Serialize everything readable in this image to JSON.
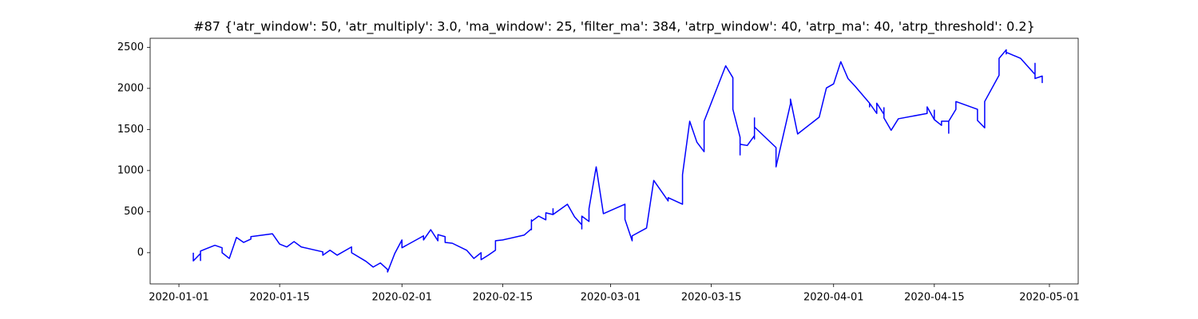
{
  "chart_data": {
    "type": "line",
    "title": "#87 {'atr_window': 50, 'atr_multiply': 3.0, 'ma_window': 25, 'filter_ma': 384, 'atrp_window': 40, 'atrp_ma': 40, 'atrp_threshold': 0.2}",
    "x": [
      "2020-01-03",
      "2020-01-03",
      "2020-01-04",
      "2020-01-04",
      "2020-01-04",
      "2020-01-06",
      "2020-01-07",
      "2020-01-07",
      "2020-01-08",
      "2020-01-09",
      "2020-01-10",
      "2020-01-11",
      "2020-01-11",
      "2020-01-14",
      "2020-01-15",
      "2020-01-16",
      "2020-01-17",
      "2020-01-18",
      "2020-01-21",
      "2020-01-21",
      "2020-01-22",
      "2020-01-23",
      "2020-01-25",
      "2020-01-25",
      "2020-01-27",
      "2020-01-28",
      "2020-01-29",
      "2020-01-30",
      "2020-01-30",
      "2020-01-31",
      "2020-02-01",
      "2020-02-01",
      "2020-02-04",
      "2020-02-04",
      "2020-02-05",
      "2020-02-06",
      "2020-02-06",
      "2020-02-07",
      "2020-02-07",
      "2020-02-08",
      "2020-02-10",
      "2020-02-11",
      "2020-02-12",
      "2020-02-12",
      "2020-02-13",
      "2020-02-14",
      "2020-02-14",
      "2020-02-15",
      "2020-02-18",
      "2020-02-19",
      "2020-02-19",
      "2020-02-19",
      "2020-02-19",
      "2020-02-20",
      "2020-02-21",
      "2020-02-21",
      "2020-02-21",
      "2020-02-22",
      "2020-02-22",
      "2020-02-22",
      "2020-02-24",
      "2020-02-25",
      "2020-02-26",
      "2020-02-26",
      "2020-02-26",
      "2020-02-27",
      "2020-02-27",
      "2020-02-28",
      "2020-02-29",
      "2020-03-03",
      "2020-03-03",
      "2020-03-04",
      "2020-03-04",
      "2020-03-06",
      "2020-03-07",
      "2020-03-09",
      "2020-03-09",
      "2020-03-11",
      "2020-03-11",
      "2020-03-12",
      "2020-03-13",
      "2020-03-14",
      "2020-03-14",
      "2020-03-17",
      "2020-03-18",
      "2020-03-18",
      "2020-03-19",
      "2020-03-19",
      "2020-03-19",
      "2020-03-20",
      "2020-03-21",
      "2020-03-21",
      "2020-03-21",
      "2020-03-21",
      "2020-03-24",
      "2020-03-24",
      "2020-03-26",
      "2020-03-26",
      "2020-03-27",
      "2020-03-30",
      "2020-03-31",
      "2020-04-01",
      "2020-04-02",
      "2020-04-03",
      "2020-04-04",
      "2020-04-06",
      "2020-04-06",
      "2020-04-06",
      "2020-04-07",
      "2020-04-07",
      "2020-04-08",
      "2020-04-08",
      "2020-04-08",
      "2020-04-09",
      "2020-04-10",
      "2020-04-14",
      "2020-04-14",
      "2020-04-15",
      "2020-04-15",
      "2020-04-15",
      "2020-04-16",
      "2020-04-16",
      "2020-04-17",
      "2020-04-17",
      "2020-04-17",
      "2020-04-18",
      "2020-04-18",
      "2020-04-21",
      "2020-04-21",
      "2020-04-22",
      "2020-04-22",
      "2020-04-24",
      "2020-04-24",
      "2020-04-25",
      "2020-04-25",
      "2020-04-25",
      "2020-04-27",
      "2020-04-29",
      "2020-04-29",
      "2020-04-29",
      "2020-04-30",
      "2020-04-30"
    ],
    "series": [
      {
        "color": "#0000ff",
        "values": [
          0,
          -100,
          -10,
          -95,
          20,
          90,
          60,
          0,
          -70,
          185,
          125,
          165,
          195,
          230,
          105,
          70,
          135,
          70,
          10,
          -30,
          30,
          -30,
          70,
          0,
          -105,
          -175,
          -125,
          -205,
          -235,
          -10,
          155,
          60,
          205,
          155,
          280,
          145,
          220,
          195,
          125,
          115,
          30,
          -70,
          0,
          -85,
          -30,
          30,
          145,
          155,
          215,
          290,
          280,
          400,
          380,
          445,
          400,
          400,
          485,
          465,
          535,
          465,
          590,
          435,
          340,
          290,
          445,
          380,
          535,
          1045,
          475,
          590,
          405,
          145,
          205,
          300,
          880,
          630,
          670,
          590,
          950,
          1600,
          1345,
          1230,
          1600,
          2275,
          2130,
          1745,
          1405,
          1190,
          1320,
          1305,
          1425,
          1640,
          1385,
          1530,
          1280,
          1045,
          1810,
          1870,
          1445,
          1650,
          2005,
          2055,
          2325,
          2120,
          2025,
          1820,
          1775,
          1820,
          1695,
          1820,
          1685,
          1765,
          1640,
          1490,
          1630,
          1695,
          1775,
          1620,
          1735,
          1620,
          1550,
          1600,
          1600,
          1455,
          1600,
          1745,
          1840,
          1745,
          1610,
          1520,
          1840,
          2160,
          2365,
          2470,
          2420,
          2440,
          2365,
          2170,
          2305,
          2120,
          2150,
          2065
        ]
      }
    ],
    "xlim": [
      "2019-12-28",
      "2020-05-05"
    ],
    "xticks": [
      "2020-01-01",
      "2020-01-15",
      "2020-02-01",
      "2020-02-15",
      "2020-03-01",
      "2020-03-15",
      "2020-04-01",
      "2020-04-15",
      "2020-05-01"
    ],
    "ylim": [
      -380,
      2610
    ],
    "yticks": [
      0,
      500,
      1000,
      1500,
      2000,
      2500
    ],
    "grid": false
  }
}
